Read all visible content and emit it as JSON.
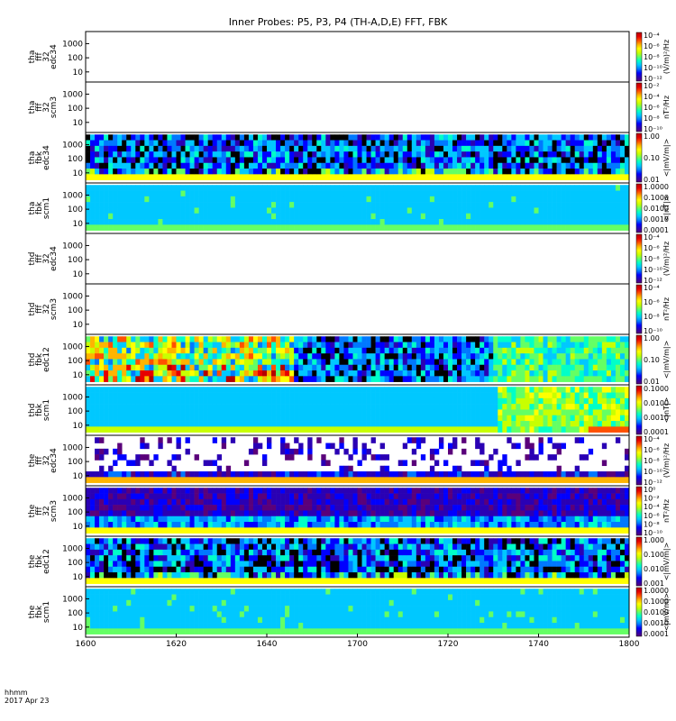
{
  "title": "Inner Probes: P5, P3, P4 (TH-A,D,E) FFT, FBK",
  "time_axis": {
    "label_line1": "hhmm",
    "label_line2": "2017 Apr 23",
    "ticks": [
      "1600",
      "1620",
      "1640",
      "1700",
      "1720",
      "1740",
      "1800"
    ]
  },
  "colors": {
    "spectrum": [
      "#5a007a",
      "#2a00b4",
      "#0000ff",
      "#0078ff",
      "#00c8ff",
      "#00ffc8",
      "#64ff64",
      "#c8ff00",
      "#ffff00",
      "#ffb400",
      "#ff5000",
      "#e60000",
      "#b40000"
    ]
  },
  "chart_data": [
    {
      "type": "heatmap",
      "panel": "tha-fff-edc34",
      "ylabel": [
        "tha",
        "fff",
        "32",
        "edc34"
      ],
      "yticks": [
        "10",
        "100",
        "1000"
      ],
      "units": "(V/m)²/Hz",
      "cbar_ticks": [
        "10⁻¹²",
        "10⁻¹⁰",
        "10⁻⁸",
        "10⁻⁶",
        "10⁻⁴"
      ],
      "state": "empty"
    },
    {
      "type": "heatmap",
      "panel": "tha-fff-scm3",
      "ylabel": [
        "tha",
        "fff",
        "32",
        "scm3"
      ],
      "yticks": [
        "10",
        "100",
        "1000"
      ],
      "units": "nT²/Hz",
      "cbar_ticks": [
        "10⁻¹⁰",
        "10⁻⁸",
        "10⁻⁶",
        "10⁻⁴",
        "10⁻²"
      ],
      "state": "empty"
    },
    {
      "type": "heatmap",
      "panel": "tha-fbk-edc34",
      "ylabel": [
        "tha",
        "fbk",
        "edc34"
      ],
      "yticks": [
        "10",
        "100",
        "1000"
      ],
      "units": "<|mV/m|>",
      "cbar_ticks": [
        "0.01",
        "0.10",
        "1.00"
      ],
      "state": "patchy-low"
    },
    {
      "type": "heatmap",
      "panel": "tha-fbk-scm1",
      "ylabel": [
        "tha",
        "fbk",
        "scm1"
      ],
      "yticks": [
        "10",
        "100",
        "1000"
      ],
      "units": "<|nT|>",
      "cbar_ticks": [
        "0.0001",
        "0.0010",
        "0.0100",
        "0.1000",
        "1.0000"
      ],
      "state": "uniform-cyan"
    },
    {
      "type": "heatmap",
      "panel": "thd-fff-edc34",
      "ylabel": [
        "thd",
        "fff",
        "32",
        "edc34"
      ],
      "yticks": [
        "10",
        "100",
        "1000"
      ],
      "units": "(V/m)²/Hz",
      "cbar_ticks": [
        "10⁻¹²",
        "10⁻¹⁰",
        "10⁻⁸",
        "10⁻⁶",
        "10⁻⁴"
      ],
      "state": "empty"
    },
    {
      "type": "heatmap",
      "panel": "thd-fff-scm3",
      "ylabel": [
        "thd",
        "fff",
        "32",
        "scm3"
      ],
      "yticks": [
        "10",
        "100",
        "1000"
      ],
      "units": "nT²/Hz",
      "cbar_ticks": [
        "10⁻¹⁰",
        "10⁻⁸",
        "10⁻⁶",
        "10⁻⁴"
      ],
      "state": "empty"
    },
    {
      "type": "heatmap",
      "panel": "thd-fbk-edc12",
      "ylabel": [
        "thd",
        "fbk",
        "edc12"
      ],
      "yticks": [
        "10",
        "100",
        "1000"
      ],
      "units": "<|mV/m|>",
      "cbar_ticks": [
        "0.01",
        "0.10",
        "1.00"
      ],
      "state": "active-then-quiet"
    },
    {
      "type": "heatmap",
      "panel": "thd-fbk-scm1",
      "ylabel": [
        "thd",
        "fbk",
        "scm1"
      ],
      "yticks": [
        "10",
        "100",
        "1000"
      ],
      "units": "<|nT|>",
      "cbar_ticks": [
        "0.0001",
        "0.0010",
        "0.0100",
        "0.1000"
      ],
      "state": "cyan-green"
    },
    {
      "type": "heatmap",
      "panel": "the-fff-edc34",
      "ylabel": [
        "the",
        "fff",
        "32",
        "edc34"
      ],
      "yticks": [
        "10",
        "100",
        "1000"
      ],
      "units": "(V/m)²/Hz",
      "cbar_ticks": [
        "10⁻¹²",
        "10⁻¹⁰",
        "10⁻⁸",
        "10⁻⁶",
        "10⁻⁴"
      ],
      "state": "sparse-spikes"
    },
    {
      "type": "heatmap",
      "panel": "the-fff-scm3",
      "ylabel": [
        "the",
        "fff",
        "32",
        "scm3"
      ],
      "yticks": [
        "10",
        "100",
        "1000"
      ],
      "units": "nT²/Hz",
      "cbar_ticks": [
        "10⁻¹⁰",
        "10⁻⁸",
        "10⁻⁶",
        "10⁻⁴",
        "10⁻²",
        "10⁰"
      ],
      "state": "dense-dark"
    },
    {
      "type": "heatmap",
      "panel": "the-fbk-edc12",
      "ylabel": [
        "the",
        "fbk",
        "edc12"
      ],
      "yticks": [
        "10",
        "100",
        "1000"
      ],
      "units": "<|mV/m|>",
      "cbar_ticks": [
        "0.001",
        "0.010",
        "0.100",
        "1.000"
      ],
      "state": "patchy-low"
    },
    {
      "type": "heatmap",
      "panel": "the-fbk-scm1",
      "ylabel": [
        "the",
        "fbk",
        "scm1"
      ],
      "yticks": [
        "10",
        "100",
        "1000"
      ],
      "units": "<|mV/m|>",
      "cbar_ticks": [
        "0.0001",
        "0.0010",
        "0.0100",
        "0.1000",
        "1.0000"
      ],
      "state": "uniform-cyan"
    }
  ]
}
